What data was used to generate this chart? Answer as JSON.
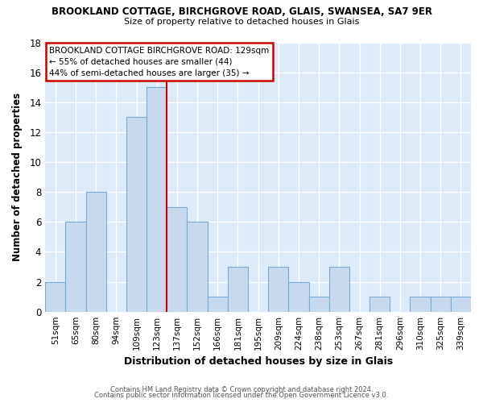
{
  "title1": "BROOKLAND COTTAGE, BIRCHGROVE ROAD, GLAIS, SWANSEA, SA7 9ER",
  "title2": "Size of property relative to detached houses in Glais",
  "xlabel": "Distribution of detached houses by size in Glais",
  "ylabel": "Number of detached properties",
  "bar_labels": [
    "51sqm",
    "65sqm",
    "80sqm",
    "94sqm",
    "109sqm",
    "123sqm",
    "137sqm",
    "152sqm",
    "166sqm",
    "181sqm",
    "195sqm",
    "209sqm",
    "224sqm",
    "238sqm",
    "253sqm",
    "267sqm",
    "281sqm",
    "296sqm",
    "310sqm",
    "325sqm",
    "339sqm"
  ],
  "bar_values": [
    2,
    6,
    8,
    0,
    13,
    15,
    7,
    6,
    1,
    3,
    0,
    3,
    2,
    1,
    3,
    0,
    1,
    0,
    1,
    1,
    1
  ],
  "bar_color": "#c8d9ee",
  "bar_edge_color": "#7aadd4",
  "vline_x": 5.5,
  "vline_color": "#cc0000",
  "annotation_title": "BROOKLAND COTTAGE BIRCHGROVE ROAD: 129sqm",
  "annotation_line1": "← 55% of detached houses are smaller (44)",
  "annotation_line2": "44% of semi-detached houses are larger (35) →",
  "annotation_box_color": "#ffffff",
  "annotation_border_color": "#cc0000",
  "ylim": [
    0,
    18
  ],
  "yticks": [
    0,
    2,
    4,
    6,
    8,
    10,
    12,
    14,
    16,
    18
  ],
  "footer1": "Contains HM Land Registry data © Crown copyright and database right 2024.",
  "footer2": "Contains public sector information licensed under the Open Government Licence v3.0.",
  "fig_bg_color": "#ffffff",
  "plot_bg_color": "#ddeaf8"
}
